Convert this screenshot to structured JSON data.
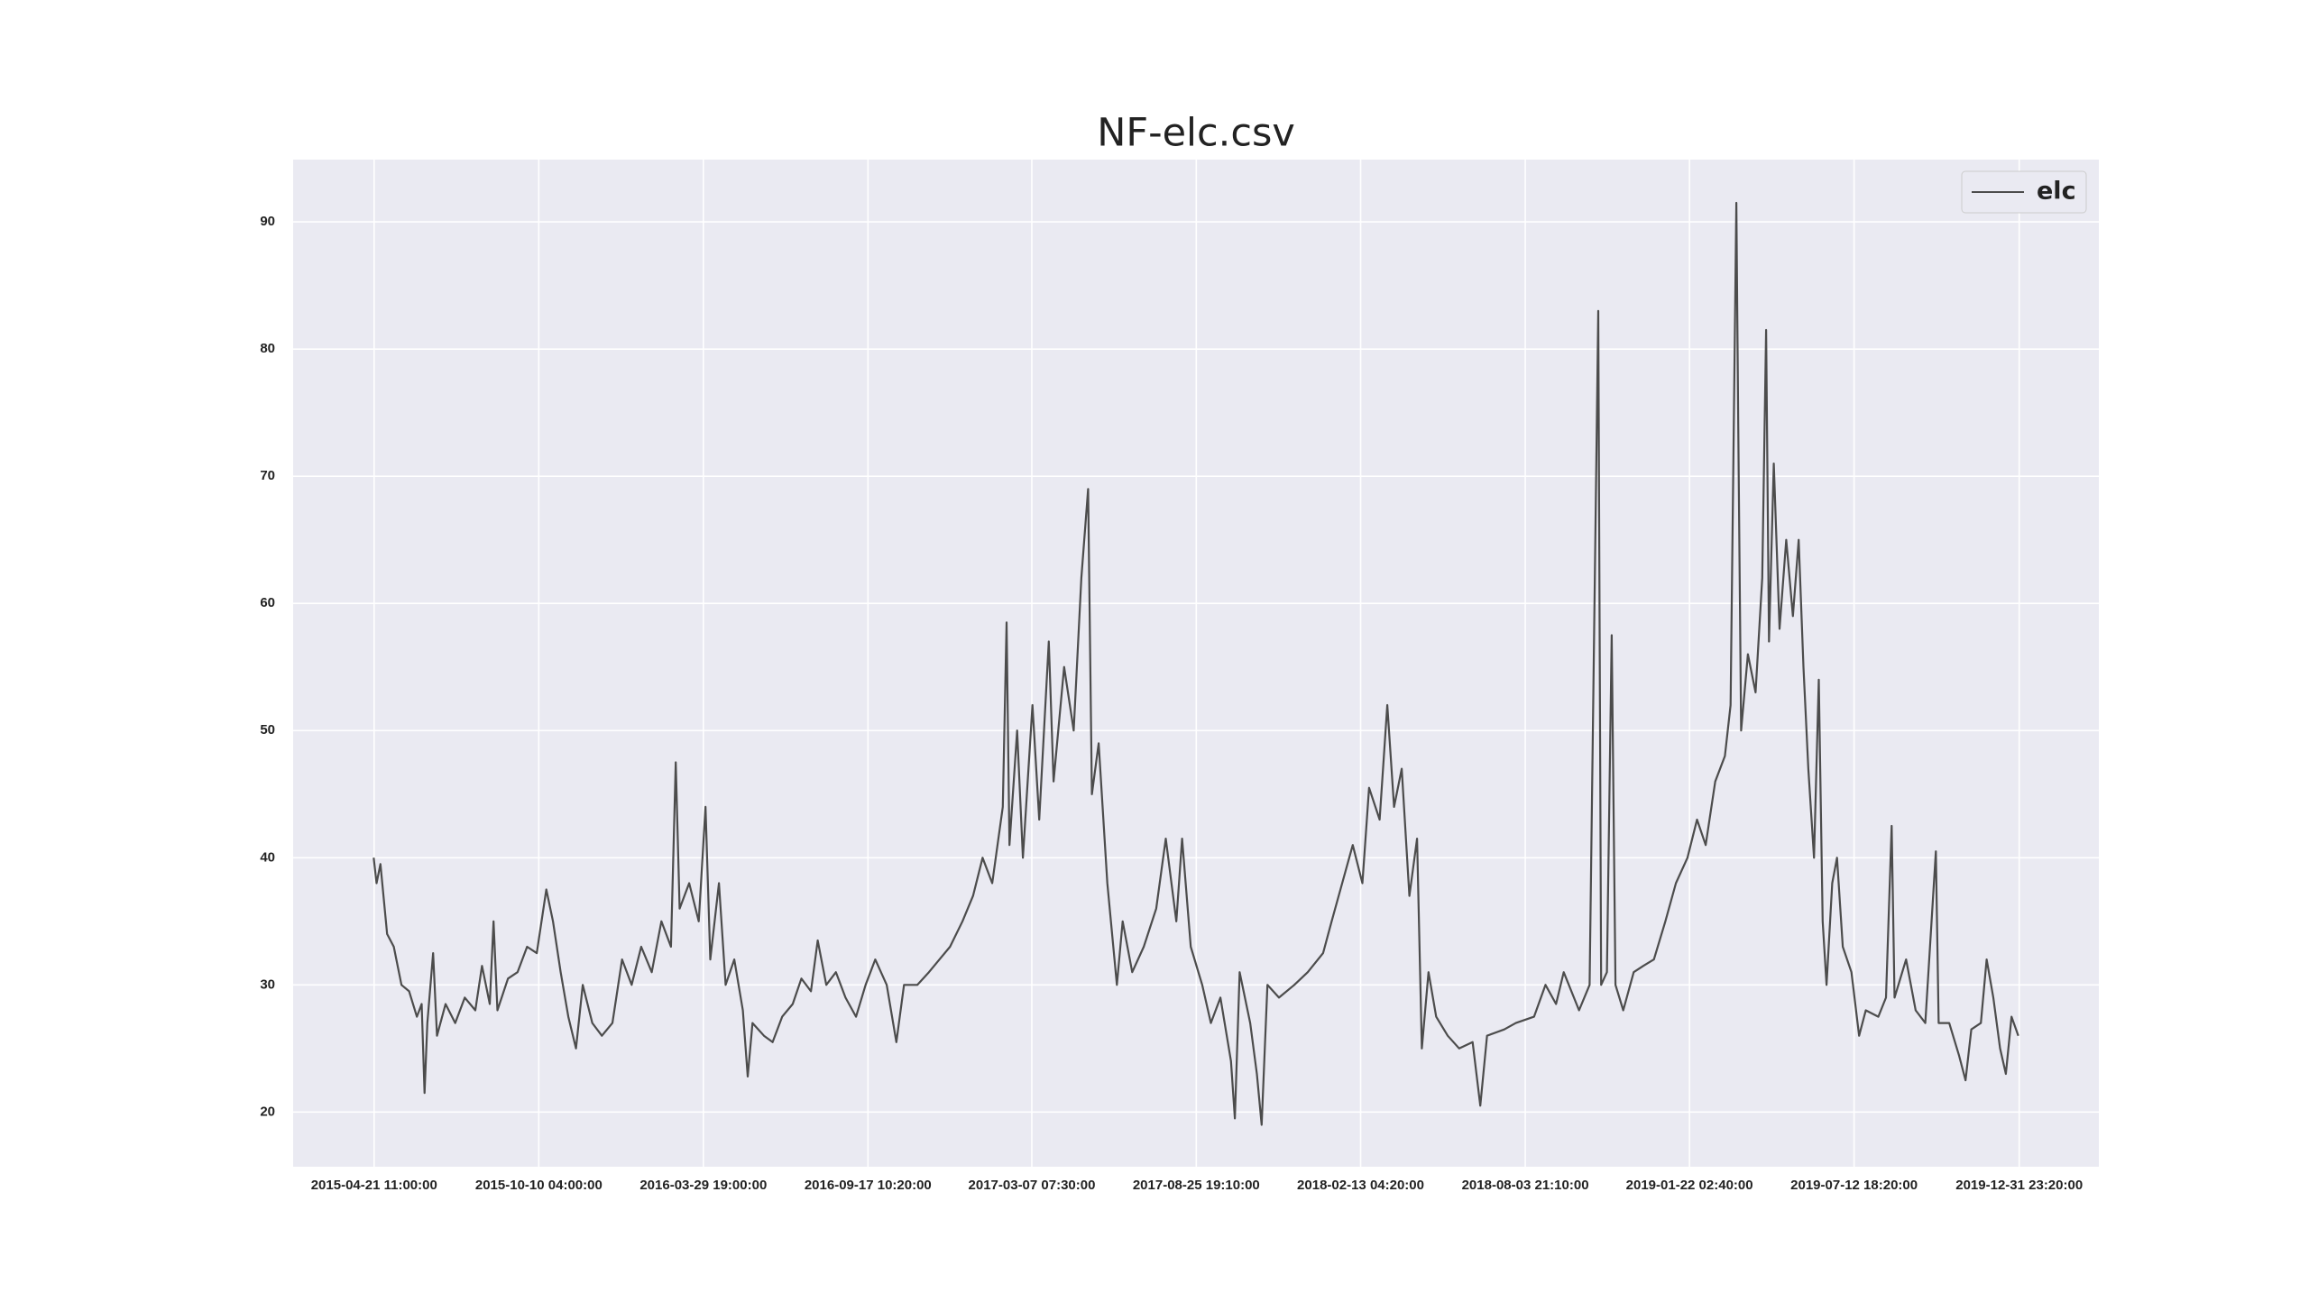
{
  "chart_data": {
    "type": "line",
    "title": "NF-elc.csv",
    "x": [
      "2015-04-21",
      "2015-04-24",
      "2015-04-28",
      "2015-05-05",
      "2015-05-12",
      "2015-05-20",
      "2015-05-28",
      "2015-06-05",
      "2015-06-10",
      "2015-06-13",
      "2015-06-16",
      "2015-06-22",
      "2015-06-26",
      "2015-07-05",
      "2015-07-15",
      "2015-07-25",
      "2015-08-05",
      "2015-08-12",
      "2015-08-20",
      "2015-08-24",
      "2015-08-28",
      "2015-09-08",
      "2015-09-18",
      "2015-09-28",
      "2015-10-08",
      "2015-10-18",
      "2015-10-25",
      "2015-11-02",
      "2015-11-10",
      "2015-11-18",
      "2015-11-25",
      "2015-12-05",
      "2015-12-15",
      "2015-12-26",
      "2016-01-05",
      "2016-01-15",
      "2016-01-25",
      "2016-02-05",
      "2016-02-15",
      "2016-02-25",
      "2016-03-01",
      "2016-03-05",
      "2016-03-15",
      "2016-03-25",
      "2016-04-01",
      "2016-04-06",
      "2016-04-15",
      "2016-04-22",
      "2016-05-01",
      "2016-05-10",
      "2016-05-15",
      "2016-05-20",
      "2016-06-01",
      "2016-06-10",
      "2016-06-20",
      "2016-07-01",
      "2016-07-10",
      "2016-07-20",
      "2016-07-27",
      "2016-08-05",
      "2016-08-15",
      "2016-08-25",
      "2016-09-05",
      "2016-09-15",
      "2016-09-25",
      "2016-10-07",
      "2016-10-17",
      "2016-10-25",
      "2016-11-08",
      "2016-11-20",
      "2016-12-01",
      "2016-12-12",
      "2016-12-25",
      "2017-01-05",
      "2017-01-15",
      "2017-01-25",
      "2017-02-05",
      "2017-02-09",
      "2017-02-12",
      "2017-02-20",
      "2017-02-26",
      "2017-03-08",
      "2017-03-15",
      "2017-03-25",
      "2017-03-30",
      "2017-04-10",
      "2017-04-20",
      "2017-04-28",
      "2017-05-05",
      "2017-05-09",
      "2017-05-16",
      "2017-05-25",
      "2017-06-04",
      "2017-06-10",
      "2017-06-20",
      "2017-07-02",
      "2017-07-15",
      "2017-07-25",
      "2017-08-05",
      "2017-08-11",
      "2017-08-20",
      "2017-09-01",
      "2017-09-10",
      "2017-09-20",
      "2017-10-01",
      "2017-10-05",
      "2017-10-10",
      "2017-10-21",
      "2017-10-28",
      "2017-11-02",
      "2017-11-08",
      "2017-11-20",
      "2017-12-06",
      "2017-12-20",
      "2018-01-05",
      "2018-01-14",
      "2018-01-25",
      "2018-02-05",
      "2018-02-15",
      "2018-02-22",
      "2018-03-05",
      "2018-03-13",
      "2018-03-20",
      "2018-03-28",
      "2018-04-05",
      "2018-04-13",
      "2018-04-18",
      "2018-04-25",
      "2018-05-03",
      "2018-05-15",
      "2018-05-27",
      "2018-06-10",
      "2018-06-18",
      "2018-06-25",
      "2018-07-13",
      "2018-07-25",
      "2018-08-13",
      "2018-08-25",
      "2018-09-05",
      "2018-09-13",
      "2018-09-29",
      "2018-10-10",
      "2018-10-19",
      "2018-10-22",
      "2018-10-28",
      "2018-11-02",
      "2018-11-06",
      "2018-11-14",
      "2018-11-25",
      "2018-12-05",
      "2018-12-16",
      "2018-12-28",
      "2019-01-08",
      "2019-01-20",
      "2019-01-30",
      "2019-02-08",
      "2019-02-18",
      "2019-02-28",
      "2019-03-06",
      "2019-03-12",
      "2019-03-14",
      "2019-03-17",
      "2019-03-24",
      "2019-04-01",
      "2019-04-08",
      "2019-04-12",
      "2019-04-15",
      "2019-04-20",
      "2019-04-26",
      "2019-05-03",
      "2019-05-10",
      "2019-05-16",
      "2019-05-21",
      "2019-05-26",
      "2019-06-01",
      "2019-06-06",
      "2019-06-10",
      "2019-06-14",
      "2019-06-20",
      "2019-06-25",
      "2019-07-01",
      "2019-07-10",
      "2019-07-18",
      "2019-07-25",
      "2019-08-07",
      "2019-08-15",
      "2019-08-21",
      "2019-08-24",
      "2019-09-05",
      "2019-09-15",
      "2019-09-25",
      "2019-10-06",
      "2019-10-09",
      "2019-10-20",
      "2019-10-30",
      "2019-11-06",
      "2019-11-12",
      "2019-11-22",
      "2019-11-28",
      "2019-12-05",
      "2019-12-12",
      "2019-12-18",
      "2019-12-24",
      "2019-12-31"
    ],
    "series": [
      {
        "name": "elc",
        "color": "#4c4c4c",
        "values": [
          40,
          38,
          39.5,
          34,
          33,
          30,
          29.5,
          27.5,
          28.5,
          21.5,
          27,
          32.5,
          26,
          28.5,
          27,
          29,
          28,
          31.5,
          28.5,
          35,
          28,
          30.5,
          31,
          33,
          32.5,
          37.5,
          35,
          31,
          27.5,
          25,
          30,
          27,
          26,
          27,
          32,
          30,
          33,
          31,
          35,
          33,
          47.5,
          36,
          38,
          35,
          44,
          32,
          38,
          30,
          32,
          28,
          22.8,
          27,
          26,
          25.5,
          27.5,
          28.5,
          30.5,
          29.5,
          33.5,
          30,
          31,
          29,
          27.5,
          30,
          32,
          30,
          25.5,
          30,
          30,
          31,
          32,
          33,
          35,
          37,
          40,
          38,
          44,
          58.5,
          41,
          50,
          40,
          52,
          43,
          57,
          46,
          55,
          50,
          62,
          69,
          45,
          49,
          38,
          30,
          35,
          31,
          33,
          36,
          41.5,
          35,
          41.5,
          33,
          30,
          27,
          29,
          24,
          19.5,
          31,
          27,
          23,
          19,
          30,
          29,
          30,
          31,
          32.5,
          35,
          38,
          41,
          38,
          45.5,
          43,
          52,
          44,
          47,
          37,
          41.5,
          25,
          31,
          27.5,
          26,
          25,
          25.5,
          20.5,
          26,
          26.5,
          27,
          27.5,
          30,
          28.5,
          31,
          28,
          30,
          83,
          30,
          31,
          57.5,
          30,
          28,
          31,
          31.5,
          32,
          35,
          38,
          40,
          43,
          41,
          46,
          48,
          52,
          91.5,
          74,
          50,
          56,
          53,
          62,
          81.5,
          57,
          71,
          58,
          65,
          59,
          65,
          55,
          47,
          40,
          54,
          35,
          30,
          38,
          40,
          33,
          31,
          26,
          28,
          27.5,
          29,
          42.5,
          29,
          32,
          28,
          27,
          40.5,
          27,
          27,
          24.5,
          22.5,
          26.5,
          27,
          32,
          29,
          25,
          23,
          27.5,
          26
        ]
      }
    ],
    "xlim": [
      "2015-01-27",
      "2020-03-24"
    ],
    "xticks": [
      "2015-04-21 11:00:00",
      "2015-10-10 04:00:00",
      "2016-03-29 19:00:00",
      "2016-09-17 10:20:00",
      "2017-03-07 07:30:00",
      "2017-08-25 19:10:00",
      "2018-02-13 04:20:00",
      "2018-08-03 21:10:00",
      "2019-01-22 02:40:00",
      "2019-07-12 18:20:00",
      "2019-12-31 23:20:00"
    ],
    "ylim": [
      15.7,
      94.9
    ],
    "yticks": [
      20,
      30,
      40,
      50,
      60,
      70,
      80,
      90
    ],
    "grid": true,
    "legend": "upper right"
  }
}
